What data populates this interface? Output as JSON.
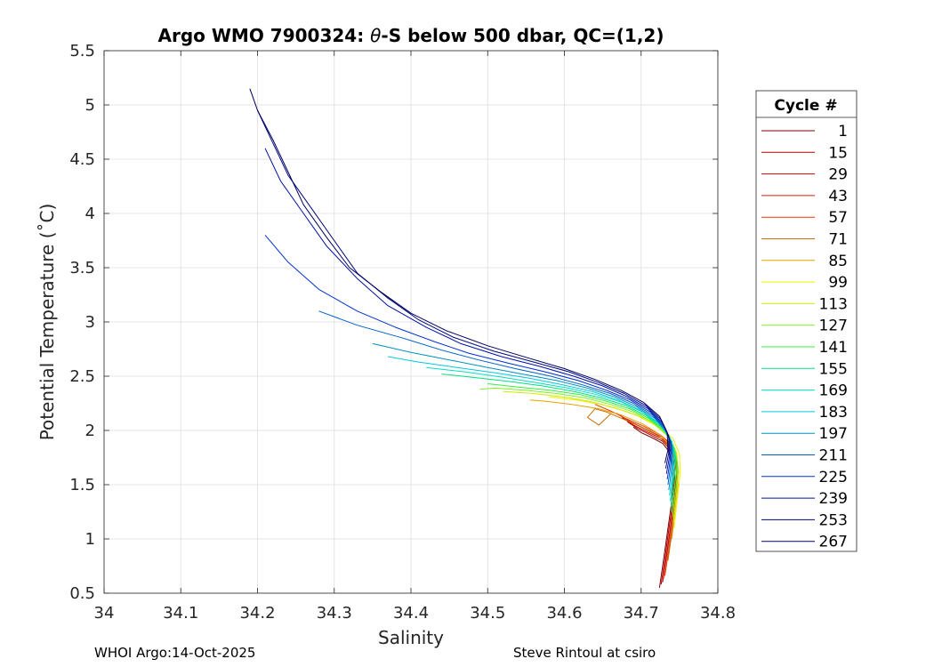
{
  "chart_data": {
    "type": "line",
    "title_prefix": "Argo WMO 7900324: ",
    "title_theta": "θ",
    "title_suffix": "-S below 500 dbar,  QC=(1,2)",
    "xlabel": "Salinity",
    "ylabel": "Potential Temperature (˚C)",
    "xlim": [
      34.0,
      34.8
    ],
    "ylim": [
      0.5,
      5.5
    ],
    "x_ticks": [
      "34",
      "34.1",
      "34.2",
      "34.3",
      "34.4",
      "34.5",
      "34.6",
      "34.7",
      "34.8"
    ],
    "y_ticks": [
      "0.5",
      "1",
      "1.5",
      "2",
      "2.5",
      "3",
      "3.5",
      "4",
      "4.5",
      "5",
      "5.5"
    ],
    "grid": true,
    "legend": {
      "title": "Cycle #",
      "placement": "right-outside",
      "entries": [
        {
          "label": "1",
          "color": "#800000"
        },
        {
          "label": "15",
          "color": "#a80000"
        },
        {
          "label": "29",
          "color": "#cc0000"
        },
        {
          "label": "43",
          "color": "#d41c10"
        },
        {
          "label": "57",
          "color": "#e03c00"
        },
        {
          "label": "71",
          "color": "#c87000"
        },
        {
          "label": "85",
          "color": "#e8a000"
        },
        {
          "label": "99",
          "color": "#f0f000"
        },
        {
          "label": "113",
          "color": "#c8f000"
        },
        {
          "label": "127",
          "color": "#80f020"
        },
        {
          "label": "141",
          "color": "#30f040"
        },
        {
          "label": "155",
          "color": "#00e080"
        },
        {
          "label": "169",
          "color": "#00e0c0"
        },
        {
          "label": "183",
          "color": "#00c8e0"
        },
        {
          "label": "197",
          "color": "#0090c0"
        },
        {
          "label": "211",
          "color": "#0060c8"
        },
        {
          "label": "225",
          "color": "#0030d0"
        },
        {
          "label": "239",
          "color": "#0010a8"
        },
        {
          "label": "253",
          "color": "#000880"
        },
        {
          "label": "267",
          "color": "#000060"
        }
      ]
    },
    "series": [
      {
        "name": "1",
        "color": "#800000",
        "s": [
          34.724,
          34.729,
          34.734,
          34.739,
          34.742,
          34.74,
          34.735,
          34.728,
          34.715,
          34.7,
          34.69
        ],
        "t": [
          0.55,
          0.8,
          1.05,
          1.3,
          1.55,
          1.72,
          1.82,
          1.88,
          1.93,
          1.98,
          2.03
        ]
      },
      {
        "name": "15",
        "color": "#a80000",
        "s": [
          34.726,
          34.731,
          34.736,
          34.741,
          34.744,
          34.742,
          34.737,
          34.728,
          34.712,
          34.695,
          34.682
        ],
        "t": [
          0.58,
          0.82,
          1.08,
          1.32,
          1.57,
          1.74,
          1.83,
          1.9,
          1.96,
          2.02,
          2.08
        ]
      },
      {
        "name": "29",
        "color": "#cc0000",
        "s": [
          34.728,
          34.733,
          34.738,
          34.743,
          34.746,
          34.744,
          34.738,
          34.728,
          34.71,
          34.69,
          34.675
        ],
        "t": [
          0.6,
          0.85,
          1.1,
          1.35,
          1.6,
          1.76,
          1.85,
          1.92,
          1.98,
          2.05,
          2.12
        ]
      },
      {
        "name": "43",
        "color": "#d41c10",
        "s": [
          34.729,
          34.734,
          34.739,
          34.744,
          34.747,
          34.745,
          34.739,
          34.727,
          34.707,
          34.686,
          34.668
        ],
        "t": [
          0.63,
          0.87,
          1.12,
          1.37,
          1.62,
          1.77,
          1.86,
          1.94,
          2.01,
          2.08,
          2.16
        ]
      },
      {
        "name": "57",
        "color": "#e03c00",
        "s": [
          34.731,
          34.736,
          34.741,
          34.745,
          34.748,
          34.746,
          34.738,
          34.725,
          34.703,
          34.68,
          34.66,
          34.64
        ],
        "t": [
          0.66,
          0.9,
          1.15,
          1.4,
          1.64,
          1.79,
          1.88,
          1.96,
          2.04,
          2.11,
          2.18,
          2.24
        ]
      },
      {
        "name": "71",
        "color": "#c87000",
        "s": [
          34.735,
          34.74,
          34.744,
          34.747,
          34.745,
          34.737,
          34.722,
          34.7,
          34.675,
          34.655,
          34.64,
          34.63,
          34.645,
          34.66
        ],
        "t": [
          0.8,
          1.05,
          1.3,
          1.55,
          1.72,
          1.85,
          1.95,
          2.03,
          2.11,
          2.17,
          2.2,
          2.12,
          2.05,
          2.15
        ]
      },
      {
        "name": "85",
        "color": "#e8a000",
        "s": [
          34.74,
          34.744,
          34.748,
          34.747,
          34.74,
          34.725,
          34.702,
          34.675,
          34.645,
          34.61,
          34.575,
          34.555
        ],
        "t": [
          1.0,
          1.25,
          1.5,
          1.7,
          1.84,
          1.96,
          2.06,
          2.14,
          2.2,
          2.24,
          2.27,
          2.28
        ]
      },
      {
        "name": "99",
        "color": "#f0f000",
        "s": [
          34.743,
          34.747,
          34.751,
          34.75,
          34.742,
          34.727,
          34.705,
          34.678,
          34.648,
          34.615,
          34.58
        ],
        "t": [
          1.1,
          1.35,
          1.6,
          1.78,
          1.92,
          2.02,
          2.11,
          2.18,
          2.24,
          2.28,
          2.31
        ]
      },
      {
        "name": "113",
        "color": "#c8f000",
        "s": [
          34.742,
          34.746,
          34.749,
          34.746,
          34.736,
          34.718,
          34.694,
          34.665,
          34.632,
          34.598,
          34.56,
          34.52
        ],
        "t": [
          1.15,
          1.4,
          1.62,
          1.8,
          1.94,
          2.05,
          2.14,
          2.21,
          2.27,
          2.31,
          2.34,
          2.36
        ]
      },
      {
        "name": "127",
        "color": "#80f020",
        "s": [
          34.741,
          34.745,
          34.748,
          34.744,
          34.733,
          34.714,
          34.69,
          34.66,
          34.627,
          34.59,
          34.55,
          34.51,
          34.49
        ],
        "t": [
          1.2,
          1.45,
          1.65,
          1.83,
          1.97,
          2.08,
          2.17,
          2.24,
          2.3,
          2.34,
          2.37,
          2.39,
          2.38
        ]
      },
      {
        "name": "141",
        "color": "#30f040",
        "s": [
          34.74,
          34.744,
          34.747,
          34.742,
          34.73,
          34.71,
          34.685,
          34.655,
          34.62,
          34.582,
          34.54,
          34.5
        ],
        "t": [
          1.25,
          1.5,
          1.7,
          1.86,
          2.0,
          2.11,
          2.2,
          2.27,
          2.33,
          2.37,
          2.4,
          2.43
        ]
      },
      {
        "name": "155",
        "color": "#00e080",
        "s": [
          34.739,
          34.743,
          34.745,
          34.74,
          34.727,
          34.706,
          34.68,
          34.648,
          34.612,
          34.572,
          34.53,
          34.48,
          34.44
        ],
        "t": [
          1.3,
          1.55,
          1.74,
          1.9,
          2.03,
          2.14,
          2.23,
          2.3,
          2.36,
          2.41,
          2.45,
          2.49,
          2.52
        ]
      },
      {
        "name": "169",
        "color": "#00e0c0",
        "s": [
          34.738,
          34.742,
          34.744,
          34.738,
          34.724,
          34.702,
          34.675,
          34.642,
          34.605,
          34.563,
          34.52,
          34.47,
          34.42
        ],
        "t": [
          1.35,
          1.6,
          1.78,
          1.93,
          2.06,
          2.17,
          2.26,
          2.33,
          2.39,
          2.44,
          2.49,
          2.54,
          2.58
        ]
      },
      {
        "name": "183",
        "color": "#00c8e0",
        "s": [
          34.737,
          34.741,
          34.742,
          34.736,
          34.721,
          34.698,
          34.67,
          34.636,
          34.598,
          34.555,
          34.51,
          34.46,
          34.41,
          34.37
        ],
        "t": [
          1.4,
          1.63,
          1.8,
          1.95,
          2.08,
          2.19,
          2.28,
          2.36,
          2.42,
          2.48,
          2.53,
          2.58,
          2.63,
          2.68
        ]
      },
      {
        "name": "197",
        "color": "#0090c0",
        "s": [
          34.736,
          34.74,
          34.741,
          34.734,
          34.718,
          34.694,
          34.665,
          34.63,
          34.59,
          34.545,
          34.5,
          34.45,
          34.4,
          34.35
        ],
        "t": [
          1.45,
          1.66,
          1.83,
          1.98,
          2.11,
          2.22,
          2.31,
          2.39,
          2.46,
          2.52,
          2.58,
          2.65,
          2.72,
          2.8
        ]
      },
      {
        "name": "211",
        "color": "#0060c8",
        "s": [
          34.735,
          34.739,
          34.74,
          34.732,
          34.715,
          34.69,
          34.66,
          34.624,
          34.582,
          34.536,
          34.488,
          34.44,
          34.39,
          34.33,
          34.28
        ],
        "t": [
          1.5,
          1.7,
          1.86,
          2.01,
          2.14,
          2.25,
          2.34,
          2.42,
          2.5,
          2.57,
          2.65,
          2.74,
          2.85,
          2.97,
          3.1
        ]
      },
      {
        "name": "225",
        "color": "#0030d0",
        "s": [
          34.734,
          34.738,
          34.739,
          34.73,
          34.712,
          34.686,
          34.655,
          34.618,
          34.575,
          34.527,
          34.476,
          34.43,
          34.38,
          34.33,
          34.28,
          34.24,
          34.21
        ],
        "t": [
          1.55,
          1.73,
          1.89,
          2.04,
          2.17,
          2.28,
          2.37,
          2.46,
          2.54,
          2.62,
          2.71,
          2.82,
          2.95,
          3.1,
          3.3,
          3.55,
          3.8
        ]
      },
      {
        "name": "239",
        "color": "#0010a8",
        "s": [
          34.733,
          34.737,
          34.737,
          34.728,
          34.709,
          34.682,
          34.65,
          34.612,
          34.568,
          34.518,
          34.465,
          34.42,
          34.37,
          34.33,
          34.29,
          34.26,
          34.23,
          34.21
        ],
        "t": [
          1.6,
          1.76,
          1.92,
          2.07,
          2.2,
          2.31,
          2.41,
          2.5,
          2.59,
          2.68,
          2.8,
          2.95,
          3.15,
          3.4,
          3.7,
          4.0,
          4.3,
          4.6
        ]
      },
      {
        "name": "253",
        "color": "#000880",
        "s": [
          34.732,
          34.736,
          34.736,
          34.726,
          34.706,
          34.678,
          34.645,
          34.606,
          34.56,
          34.508,
          34.455,
          34.41,
          34.37,
          34.33,
          34.3,
          34.27,
          34.24,
          34.22,
          34.2
        ],
        "t": [
          1.65,
          1.79,
          1.95,
          2.1,
          2.23,
          2.34,
          2.44,
          2.54,
          2.63,
          2.73,
          2.86,
          3.02,
          3.22,
          3.45,
          3.75,
          4.05,
          4.35,
          4.65,
          4.95
        ]
      },
      {
        "name": "267",
        "color": "#000060",
        "s": [
          34.731,
          34.735,
          34.734,
          34.724,
          34.703,
          34.674,
          34.64,
          34.6,
          34.552,
          34.5,
          34.446,
          34.4,
          34.36,
          34.32,
          34.29,
          34.26,
          34.24,
          34.22,
          34.2,
          34.19
        ],
        "t": [
          1.7,
          1.82,
          1.98,
          2.13,
          2.26,
          2.37,
          2.47,
          2.57,
          2.67,
          2.78,
          2.92,
          3.08,
          3.28,
          3.5,
          3.78,
          4.08,
          4.38,
          4.68,
          4.95,
          5.15
        ]
      }
    ]
  },
  "footer": {
    "left": "WHOI Argo:14-Oct-2025",
    "right": "Steve Rintoul at csiro"
  }
}
